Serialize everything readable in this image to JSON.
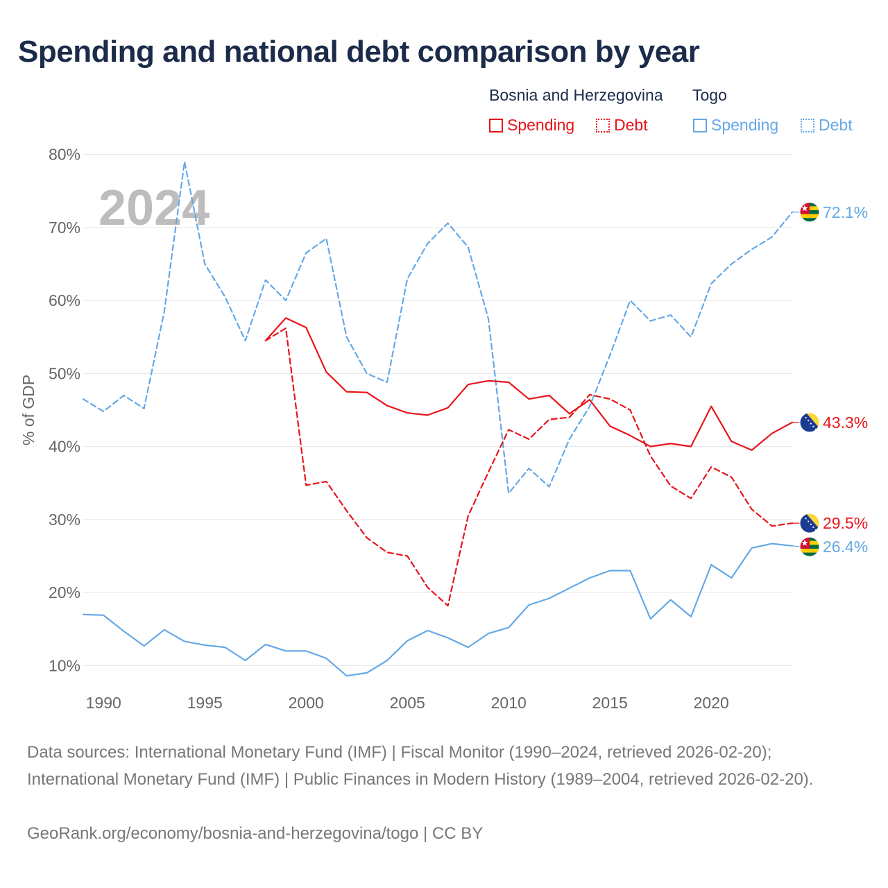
{
  "title": "Spending and national debt comparison by year",
  "legend": {
    "bih_country": "Bosnia and Herzegovina",
    "togo_country": "Togo",
    "spending_label": "Spending",
    "debt_label": "Debt"
  },
  "colors": {
    "bih": "#e8151b",
    "togo": "#65a8e6",
    "title": "#1c2b4a"
  },
  "footer": {
    "sources": "Data sources: International Monetary Fund (IMF) | Fiscal Monitor (1990–2024, retrieved 2026-02-20); International Monetary Fund (IMF) | Public Finances in Modern History (1989–2004, retrieved 2026-02-20).",
    "credit": "GeoRank.org/economy/bosnia-and-herzegovina/togo | CC BY"
  },
  "chart_data": {
    "type": "line",
    "year_label": "2024",
    "ylabel": "% of GDP",
    "xlim": [
      1989,
      2024
    ],
    "ylim": [
      5,
      85
    ],
    "x_ticks": [
      1990,
      1995,
      2000,
      2005,
      2010,
      2015,
      2020
    ],
    "y_ticks": [
      10,
      20,
      30,
      40,
      50,
      60,
      70,
      80
    ],
    "y_tick_labels": [
      "10%",
      "20%",
      "30%",
      "40%",
      "50%",
      "60%",
      "70%",
      "80%"
    ],
    "series": [
      {
        "name": "Togo Debt",
        "country": "Togo",
        "metric": "Debt",
        "color": "#65a8e6",
        "dash": true,
        "end_label": "72.1%",
        "flag": "togo",
        "years": [
          1989,
          1990,
          1991,
          1992,
          1993,
          1994,
          1995,
          1996,
          1997,
          1998,
          1999,
          2000,
          2001,
          2002,
          2003,
          2004,
          2005,
          2006,
          2007,
          2008,
          2009,
          2010,
          2011,
          2012,
          2013,
          2014,
          2015,
          2016,
          2017,
          2018,
          2019,
          2020,
          2021,
          2022,
          2023,
          2024
        ],
        "values": [
          46.5,
          44.8,
          47.0,
          45.2,
          58.5,
          79.0,
          65.0,
          60.5,
          54.5,
          62.8,
          60.0,
          66.5,
          68.5,
          55.0,
          50.0,
          48.8,
          63.0,
          67.8,
          70.6,
          67.3,
          57.5,
          33.6,
          37.0,
          34.5,
          41.0,
          45.5,
          52.5,
          60.0,
          57.2,
          58.0,
          55.0,
          62.3,
          65.0,
          67.0,
          68.7,
          72.1
        ]
      },
      {
        "name": "Bosnia and Herzegovina Spending",
        "country": "Bosnia and Herzegovina",
        "metric": "Spending",
        "color": "#e8151b",
        "dash": false,
        "end_label": "43.3%",
        "flag": "bih",
        "years": [
          1998,
          1999,
          2000,
          2001,
          2002,
          2003,
          2004,
          2005,
          2006,
          2007,
          2008,
          2009,
          2010,
          2011,
          2012,
          2013,
          2014,
          2015,
          2016,
          2017,
          2018,
          2019,
          2020,
          2021,
          2022,
          2023,
          2024
        ],
        "values": [
          54.5,
          57.6,
          56.3,
          50.2,
          47.5,
          47.4,
          45.6,
          44.6,
          44.3,
          45.3,
          48.5,
          49.0,
          48.8,
          46.5,
          47.0,
          44.5,
          46.4,
          42.8,
          41.5,
          40.0,
          40.4,
          40.0,
          45.5,
          40.7,
          39.5,
          41.8,
          43.3
        ]
      },
      {
        "name": "Bosnia and Herzegovina Debt",
        "country": "Bosnia and Herzegovina",
        "metric": "Debt",
        "color": "#e8151b",
        "dash": true,
        "end_label": "29.5%",
        "flag": "bih",
        "years": [
          1998,
          1999,
          2000,
          2001,
          2002,
          2003,
          2004,
          2005,
          2006,
          2007,
          2008,
          2009,
          2010,
          2011,
          2012,
          2013,
          2014,
          2015,
          2016,
          2017,
          2018,
          2019,
          2020,
          2021,
          2022,
          2023,
          2024
        ],
        "values": [
          54.5,
          56.2,
          34.7,
          35.2,
          31.2,
          27.5,
          25.5,
          25.0,
          20.7,
          18.2,
          30.5,
          36.5,
          42.3,
          41.0,
          43.7,
          44.0,
          47.1,
          46.5,
          45.0,
          38.7,
          34.6,
          32.9,
          37.2,
          35.8,
          31.4,
          29.1,
          29.5
        ]
      },
      {
        "name": "Togo Spending",
        "country": "Togo",
        "metric": "Spending",
        "color": "#65a8e6",
        "dash": false,
        "end_label": "26.4%",
        "flag": "togo",
        "years": [
          1989,
          1990,
          1991,
          1992,
          1993,
          1994,
          1995,
          1996,
          1997,
          1998,
          1999,
          2000,
          2001,
          2002,
          2003,
          2004,
          2005,
          2006,
          2007,
          2008,
          2009,
          2010,
          2011,
          2012,
          2013,
          2014,
          2015,
          2016,
          2017,
          2018,
          2019,
          2020,
          2021,
          2022,
          2023,
          2024
        ],
        "values": [
          17.0,
          16.9,
          14.7,
          12.7,
          14.9,
          13.3,
          12.8,
          12.5,
          10.7,
          12.9,
          12.0,
          12.0,
          11.0,
          8.6,
          9.0,
          10.7,
          13.4,
          14.8,
          13.8,
          12.5,
          14.4,
          15.2,
          18.3,
          19.2,
          20.6,
          22.0,
          23.0,
          23.0,
          16.4,
          19.0,
          16.7,
          23.8,
          22.0,
          26.1,
          26.7,
          26.4
        ]
      }
    ]
  }
}
